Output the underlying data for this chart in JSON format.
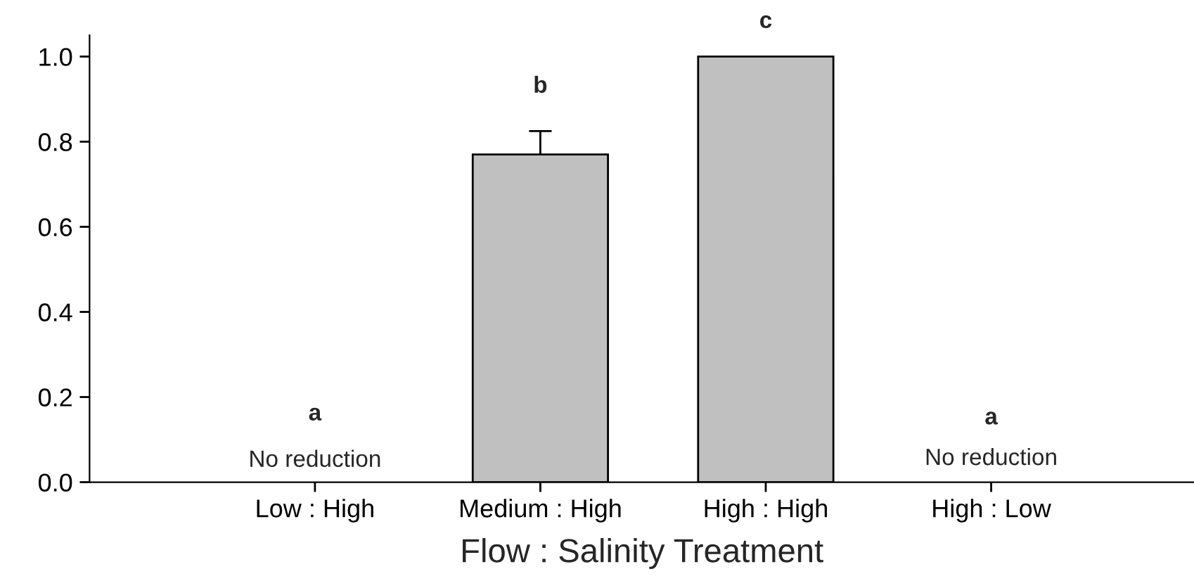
{
  "chart_data": {
    "type": "bar",
    "xlabel": "Flow : Salinity Treatment",
    "categories": [
      "Low : High",
      "Medium : High",
      "High : High",
      "High : Low"
    ],
    "values": [
      0,
      0.77,
      1.0,
      0
    ],
    "errors": [
      null,
      [
        0.77,
        0.825
      ],
      null,
      null
    ],
    "color": "#c0c0c0",
    "ylim": [
      0,
      1.05
    ],
    "yticks": [
      {
        "value": 0,
        "label": "0.0"
      },
      0.2,
      0.4,
      0.6,
      0.8,
      {
        "value": 1.0,
        "label": "1.0"
      }
    ],
    "grid": false,
    "annotations": [
      "a",
      "No reduction",
      "b",
      "c",
      "a",
      "No reduction"
    ]
  }
}
